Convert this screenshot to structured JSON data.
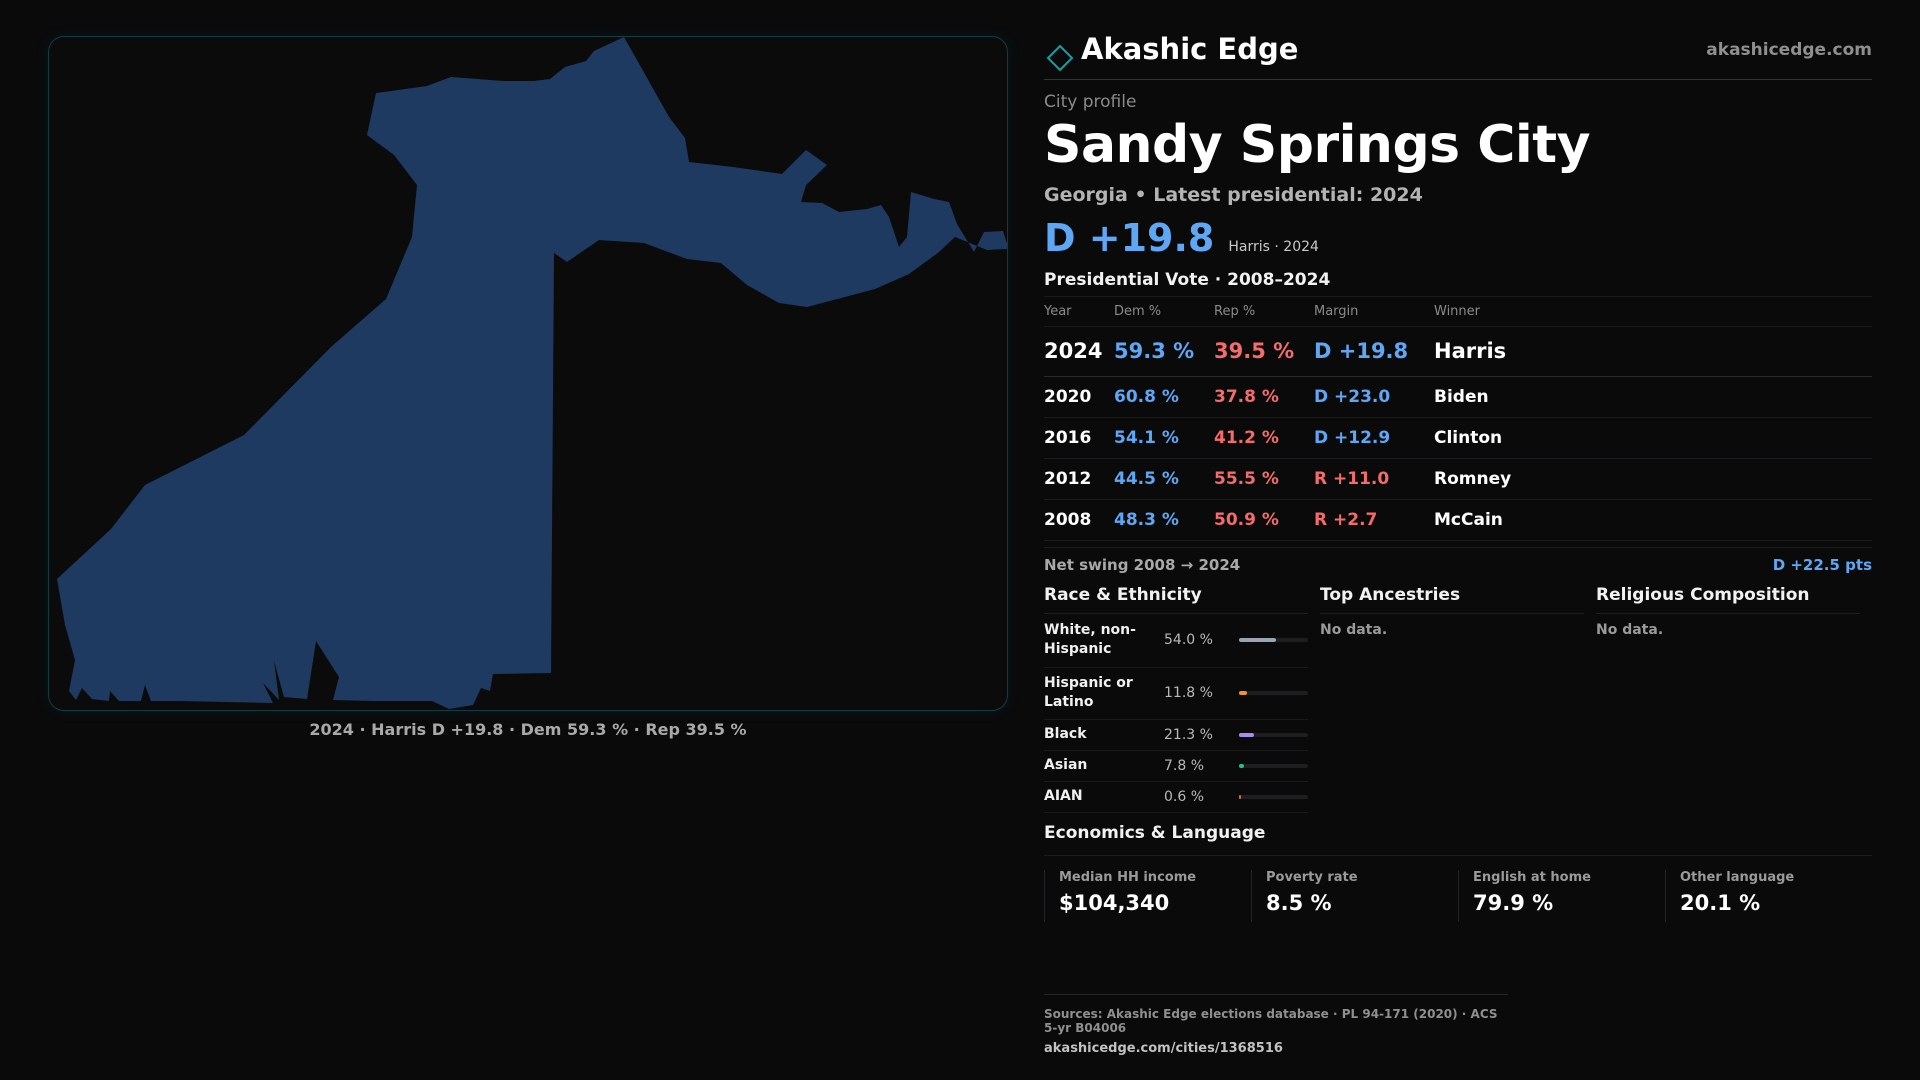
{
  "brand": {
    "name": "Akashic Edge",
    "url": "akashicedge.com",
    "logo_icon": "diamond-icon"
  },
  "map": {
    "caption": "2024 · Harris D +19.8 · Dem 59.3 % · Rep 39.5 %",
    "fill_color": "#1e3a60",
    "frame_color": "#133c42"
  },
  "profile": {
    "kicker": "City profile",
    "title": "Sandy Springs City",
    "subtitle": "Georgia • Latest presidential: 2024",
    "headline_margin": "D +19.8",
    "headline_note": "Harris · 2024"
  },
  "votes": {
    "title": "Presidential Vote · 2008–2024",
    "headers": {
      "year": "Year",
      "dem": "Dem %",
      "rep": "Rep %",
      "margin": "Margin",
      "winner": "Winner"
    },
    "rows": [
      {
        "year": "2024",
        "dem": "59.3 %",
        "rep": "39.5 %",
        "margin": "D +19.8",
        "party": "d",
        "winner": "Harris"
      },
      {
        "year": "2020",
        "dem": "60.8 %",
        "rep": "37.8 %",
        "margin": "D +23.0",
        "party": "d",
        "winner": "Biden"
      },
      {
        "year": "2016",
        "dem": "54.1 %",
        "rep": "41.2 %",
        "margin": "D +12.9",
        "party": "d",
        "winner": "Clinton"
      },
      {
        "year": "2012",
        "dem": "44.5 %",
        "rep": "55.5 %",
        "margin": "R +11.0",
        "party": "r",
        "winner": "Romney"
      },
      {
        "year": "2008",
        "dem": "48.3 %",
        "rep": "50.9 %",
        "margin": "R +2.7",
        "party": "r",
        "winner": "McCain"
      }
    ],
    "swing_label": "Net swing 2008 → 2024",
    "swing_value": "D +22.5 pts"
  },
  "race": {
    "title": "Race & Ethnicity",
    "rows": [
      {
        "label": "White, non-Hispanic",
        "pct": "54.0 %",
        "value": 54.0,
        "color": "#9aa3b5"
      },
      {
        "label": "Hispanic or Latino",
        "pct": "11.8 %",
        "value": 11.8,
        "color": "#f0952c"
      },
      {
        "label": "Black",
        "pct": "21.3 %",
        "value": 21.3,
        "color": "#a58cf0"
      },
      {
        "label": "Asian",
        "pct": "7.8 %",
        "value": 7.8,
        "color": "#22c08b"
      },
      {
        "label": "AIAN",
        "pct": "0.6 %",
        "value": 0.6,
        "color": "#e0683a"
      }
    ]
  },
  "ancestries": {
    "title": "Top Ancestries",
    "empty": "No data."
  },
  "religion": {
    "title": "Religious Composition",
    "empty": "No data."
  },
  "economics": {
    "title": "Economics & Language",
    "cells": [
      {
        "label": "Median HH income",
        "value": "$104,340"
      },
      {
        "label": "Poverty rate",
        "value": "8.5 %"
      },
      {
        "label": "English at home",
        "value": "79.9 %"
      },
      {
        "label": "Other language",
        "value": "20.1 %"
      }
    ]
  },
  "sources": {
    "line": "Sources: Akashic Edge elections database · PL 94-171 (2020) · ACS 5-yr B04006",
    "url": "akashicedge.com/cities/1368516"
  }
}
